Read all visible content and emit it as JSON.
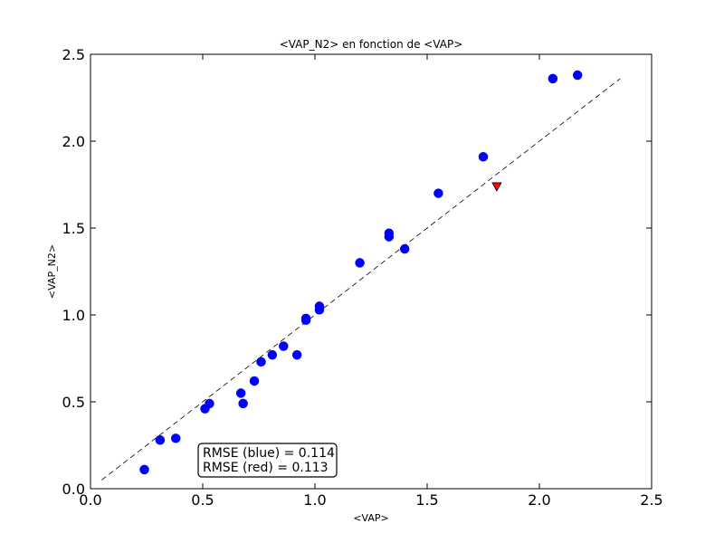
{
  "chart_data": {
    "type": "scatter",
    "title": "<VAP_N2> en fonction de <VAP>",
    "xlabel": "<VAP>",
    "ylabel": "<VAP_N2>",
    "xlim": [
      0.0,
      2.5
    ],
    "ylim": [
      0.0,
      2.5
    ],
    "xticks": [
      "0.0",
      "0.5",
      "1.0",
      "1.5",
      "2.0",
      "2.5"
    ],
    "yticks": [
      "0.0",
      "0.5",
      "1.0",
      "1.5",
      "2.0",
      "2.5"
    ],
    "grid": false,
    "series": [
      {
        "marker": "circle",
        "color": "#0000ff",
        "points": [
          [
            0.24,
            0.11
          ],
          [
            0.31,
            0.28
          ],
          [
            0.38,
            0.29
          ],
          [
            0.51,
            0.46
          ],
          [
            0.53,
            0.49
          ],
          [
            0.67,
            0.55
          ],
          [
            0.68,
            0.49
          ],
          [
            0.73,
            0.62
          ],
          [
            0.76,
            0.73
          ],
          [
            0.81,
            0.77
          ],
          [
            0.86,
            0.82
          ],
          [
            0.92,
            0.77
          ],
          [
            0.96,
            0.97
          ],
          [
            0.96,
            0.98
          ],
          [
            1.02,
            1.03
          ],
          [
            1.02,
            1.05
          ],
          [
            1.2,
            1.3
          ],
          [
            1.33,
            1.45
          ],
          [
            1.33,
            1.47
          ],
          [
            1.4,
            1.38
          ],
          [
            1.55,
            1.7
          ],
          [
            1.75,
            1.91
          ],
          [
            2.06,
            2.36
          ],
          [
            2.17,
            2.38
          ]
        ]
      },
      {
        "marker": "triangle-down",
        "color": "#ff0000",
        "points": [
          [
            1.81,
            1.74
          ]
        ]
      }
    ],
    "reference_line": {
      "style": "dashed",
      "color": "#000000",
      "from": [
        0.05,
        0.05
      ],
      "to": [
        2.36,
        2.36
      ]
    },
    "legend": {
      "placement": "lower-left",
      "lines": [
        "RMSE (blue) = 0.114",
        "RMSE (red) = 0.113"
      ]
    }
  }
}
